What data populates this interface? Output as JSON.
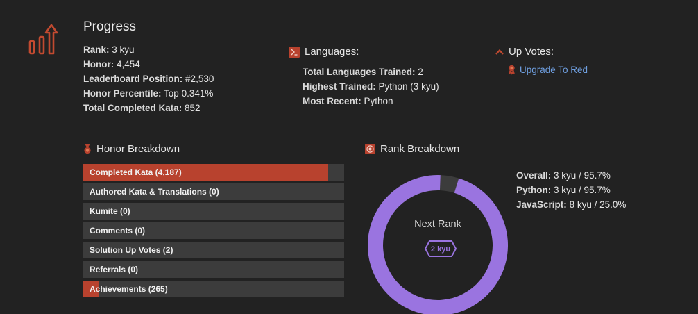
{
  "progress": {
    "title": "Progress",
    "stats": [
      {
        "label": "Rank:",
        "value": "3 kyu"
      },
      {
        "label": "Honor:",
        "value": "4,454"
      },
      {
        "label": "Leaderboard Position:",
        "value": "#2,530"
      },
      {
        "label": "Honor Percentile:",
        "value": "Top 0.341%"
      },
      {
        "label": "Total Completed Kata:",
        "value": "852"
      }
    ]
  },
  "languages": {
    "title": "Languages:",
    "stats": [
      {
        "label": "Total Languages Trained:",
        "value": "2"
      },
      {
        "label": "Highest Trained:",
        "value": "Python (3 kyu)"
      },
      {
        "label": "Most Recent:",
        "value": "Python"
      }
    ]
  },
  "up_votes": {
    "title": "Up Votes:",
    "upgrade_link": "Upgrade To Red"
  },
  "honor_breakdown": {
    "title": "Honor Breakdown",
    "bars": [
      {
        "label": "Completed Kata (4,187)",
        "fraction": 0.94
      },
      {
        "label": "Authored Kata & Translations (0)",
        "fraction": 0
      },
      {
        "label": "Kumite (0)",
        "fraction": 0
      },
      {
        "label": "Comments (0)",
        "fraction": 0
      },
      {
        "label": "Solution Up Votes (2)",
        "fraction": 0
      },
      {
        "label": "Referrals (0)",
        "fraction": 0
      },
      {
        "label": "Achievements (265)",
        "fraction": 0.06
      }
    ]
  },
  "rank_breakdown": {
    "title": "Rank Breakdown",
    "donut": {
      "progress": 0.957,
      "center_label": "Next Rank",
      "next_rank": "2 kyu"
    },
    "stats": [
      {
        "label": "Overall:",
        "value": "3 kyu / 95.7%"
      },
      {
        "label": "Python:",
        "value": "3 kyu / 95.7%"
      },
      {
        "label": "JavaScript:",
        "value": "8 kyu / 25.0%"
      }
    ]
  },
  "colors": {
    "background": "#222222",
    "accent_red": "#b8422e",
    "bar_track": "#3c3c3c",
    "rank_purple": "#9a74e0",
    "link_blue": "#6f9fe0"
  },
  "icons": {
    "progress": "bar-chart-up-arrow-icon",
    "languages": "terminal-icon",
    "up_votes": "chevron-up-icon",
    "upgrade": "award-ribbon-icon",
    "honor": "medal-icon",
    "rank": "target-icon"
  }
}
